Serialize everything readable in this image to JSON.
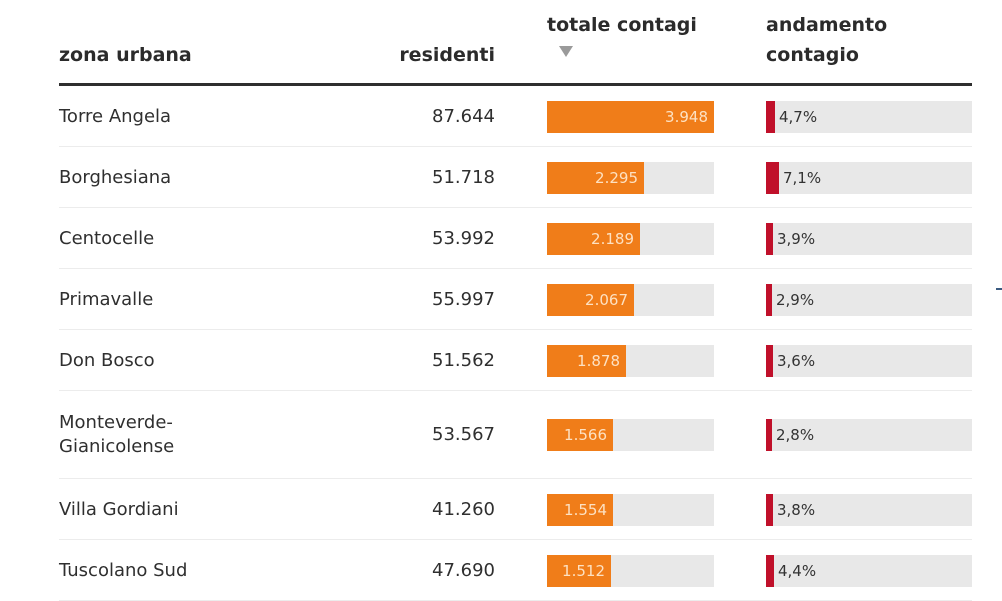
{
  "chart_data": {
    "type": "table",
    "columns": [
      {
        "key": "zone",
        "label": "zona urbana"
      },
      {
        "key": "residents",
        "label": "residenti"
      },
      {
        "key": "total_cases",
        "label": "totale contagi",
        "sorted": "descending"
      },
      {
        "key": "trend",
        "label": "andamento contagio"
      }
    ],
    "max_total_cases": 3948,
    "max_trend_pct": 7.1,
    "rows": [
      {
        "zone": "Torre Angela",
        "residents": "87.644",
        "total_cases": 3948,
        "total_cases_label": "3.948",
        "trend_pct": 4.7,
        "trend_label": "4,7%"
      },
      {
        "zone": "Borghesiana",
        "residents": "51.718",
        "total_cases": 2295,
        "total_cases_label": "2.295",
        "trend_pct": 7.1,
        "trend_label": "7,1%"
      },
      {
        "zone": "Centocelle",
        "residents": "53.992",
        "total_cases": 2189,
        "total_cases_label": "2.189",
        "trend_pct": 3.9,
        "trend_label": "3,9%"
      },
      {
        "zone": "Primavalle",
        "residents": "55.997",
        "total_cases": 2067,
        "total_cases_label": "2.067",
        "trend_pct": 2.9,
        "trend_label": "2,9%"
      },
      {
        "zone": "Don Bosco",
        "residents": "51.562",
        "total_cases": 1878,
        "total_cases_label": "1.878",
        "trend_pct": 3.6,
        "trend_label": "3,6%"
      },
      {
        "zone": "Monteverde-\nGianicolense",
        "zone_line1": "Monteverde-",
        "zone_line2": "Gianicolense",
        "residents": "53.567",
        "total_cases": 1566,
        "total_cases_label": "1.566",
        "trend_pct": 2.8,
        "trend_label": "2,8%"
      },
      {
        "zone": "Villa Gordiani",
        "residents": "41.260",
        "total_cases": 1554,
        "total_cases_label": "1.554",
        "trend_pct": 3.8,
        "trend_label": "3,8%"
      },
      {
        "zone": "Tuscolano Sud",
        "residents": "47.690",
        "total_cases": 1512,
        "total_cases_label": "1.512",
        "trend_pct": 4.4,
        "trend_label": "4,4%"
      }
    ]
  },
  "colors": {
    "total_bar": "#f07d19",
    "trend_bar": "#c0102a",
    "track": "#e8e8e8"
  }
}
